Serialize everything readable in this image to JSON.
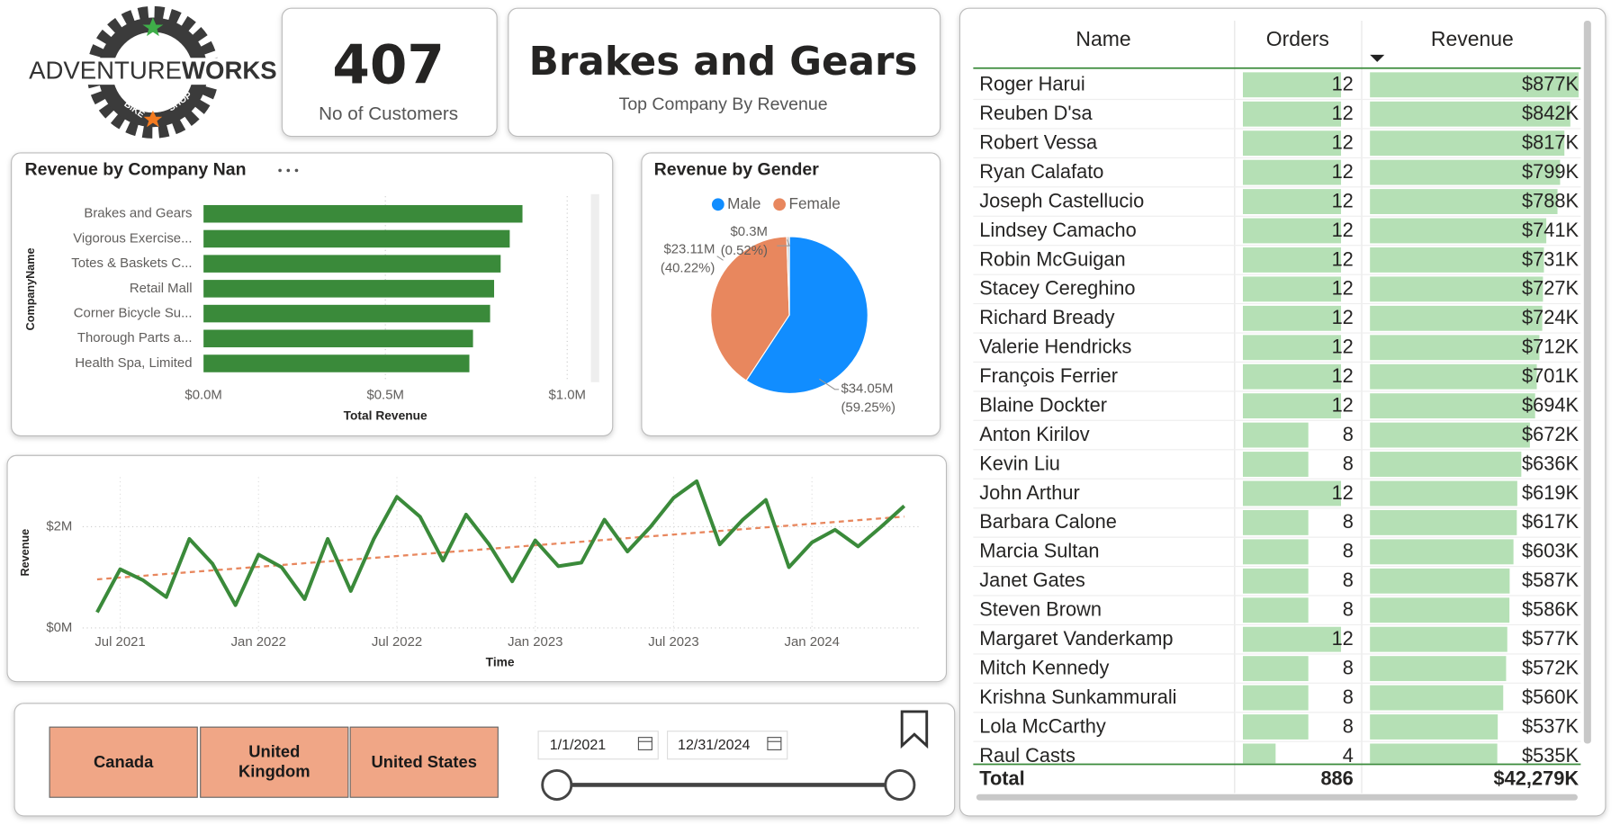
{
  "logo": {
    "name_light": "ADVENTURE",
    "name_bold": "WORKS",
    "badge": [
      "BIKE",
      "SHOP"
    ]
  },
  "cards": [
    {
      "value": 407,
      "label": "No of Customers"
    },
    {
      "value": "Brakes and Gears",
      "label": "Top Company By Revenue"
    }
  ],
  "chart_data": [
    {
      "type": "bar",
      "orientation": "horizontal",
      "title": "Revenue by Company Nan",
      "x_label": "Total Revenue",
      "y_label": "CompanyName",
      "color": "#3A8A3A",
      "grid": true,
      "categories": [
        "Brakes and Gears",
        "Vigorous Exercise...",
        "Totes & Baskets C...",
        "Retail Mall",
        "Corner Bicycle Su...",
        "Thorough Parts a...",
        "Health Spa, Limited"
      ],
      "values": [
        877000,
        842000,
        817000,
        799000,
        788000,
        741000,
        731000
      ],
      "xlim": [
        0,
        1070000
      ],
      "xticks": [
        {
          "value": 0,
          "label": "$0.0M"
        },
        {
          "value": 500000,
          "label": "$0.5M"
        },
        {
          "value": 1000000,
          "label": "$1.0M"
        }
      ]
    },
    {
      "type": "pie",
      "title": "Revenue by Gender",
      "categories": [
        "Male",
        "Female",
        null
      ],
      "colors": [
        "#118DFF",
        "#E8875E",
        "#C8C8C8"
      ],
      "values": [
        34050000,
        23110000,
        300000
      ],
      "value_labels": [
        "$34.05M",
        "$23.11M",
        "$0.3M"
      ],
      "percent_labels": [
        "(59.25%)",
        "(40.22%)",
        "(0.52%)"
      ],
      "legend": "top"
    },
    {
      "type": "line",
      "x_label": "Time",
      "y_label": "Revenue",
      "color": "#3A8A3A",
      "grid": true,
      "x": [
        "2021-06",
        "2021-07",
        "2021-08",
        "2021-09",
        "2021-10",
        "2021-11",
        "2021-12",
        "2022-01",
        "2022-02",
        "2022-03",
        "2022-04",
        "2022-05",
        "2022-06",
        "2022-07",
        "2022-08",
        "2022-09",
        "2022-10",
        "2022-11",
        "2022-12",
        "2023-01",
        "2023-02",
        "2023-03",
        "2023-04",
        "2023-05",
        "2023-06",
        "2023-07",
        "2023-08",
        "2023-09",
        "2023-10",
        "2023-11",
        "2023-12",
        "2024-01",
        "2024-02",
        "2024-03",
        "2024-04",
        "2024-05"
      ],
      "values": [
        310000,
        1160000,
        940000,
        610000,
        1760000,
        1270000,
        450000,
        1450000,
        1200000,
        570000,
        1760000,
        730000,
        1760000,
        2590000,
        2200000,
        1330000,
        2240000,
        1650000,
        920000,
        1730000,
        1220000,
        1290000,
        2140000,
        1510000,
        2000000,
        2570000,
        2900000,
        1650000,
        2140000,
        2530000,
        1200000,
        1690000,
        1940000,
        1610000,
        2000000,
        2410000
      ],
      "trend": {
        "color": "#E8875E",
        "values": [
          960000,
          2200000
        ]
      },
      "ylim": [
        -100000,
        3000000
      ],
      "yticks": [
        {
          "value": 0,
          "label": "$0M"
        },
        {
          "value": 2000000,
          "label": "$2M"
        }
      ],
      "xticks": [
        {
          "value": "2021-07",
          "label": "Jul 2021"
        },
        {
          "value": "2022-01",
          "label": "Jan 2022"
        },
        {
          "value": "2022-07",
          "label": "Jul 2022"
        },
        {
          "value": "2023-01",
          "label": "Jan 2023"
        },
        {
          "value": "2023-07",
          "label": "Jul 2023"
        },
        {
          "value": "2024-01",
          "label": "Jan 2024"
        }
      ]
    }
  ],
  "slicer": {
    "countries": [
      "Canada",
      "United Kingdom",
      "United States"
    ],
    "date_from": "1/1/2021",
    "date_to": "12/31/2024"
  },
  "table": {
    "columns": [
      "Name",
      "Orders",
      "Revenue"
    ],
    "rows": [
      {
        "name": "Roger Harui",
        "orders": 12,
        "revenue": 877000,
        "revenue_label": "$877K"
      },
      {
        "name": "Reuben D'sa",
        "orders": 12,
        "revenue": 842000,
        "revenue_label": "$842K"
      },
      {
        "name": "Robert Vessa",
        "orders": 12,
        "revenue": 817000,
        "revenue_label": "$817K"
      },
      {
        "name": "Ryan Calafato",
        "orders": 12,
        "revenue": 799000,
        "revenue_label": "$799K"
      },
      {
        "name": "Joseph Castellucio",
        "orders": 12,
        "revenue": 788000,
        "revenue_label": "$788K"
      },
      {
        "name": "Lindsey Camacho",
        "orders": 12,
        "revenue": 741000,
        "revenue_label": "$741K"
      },
      {
        "name": "Robin McGuigan",
        "orders": 12,
        "revenue": 731000,
        "revenue_label": "$731K"
      },
      {
        "name": "Stacey Cereghino",
        "orders": 12,
        "revenue": 727000,
        "revenue_label": "$727K"
      },
      {
        "name": "Richard Bready",
        "orders": 12,
        "revenue": 724000,
        "revenue_label": "$724K"
      },
      {
        "name": "Valerie Hendricks",
        "orders": 12,
        "revenue": 712000,
        "revenue_label": "$712K"
      },
      {
        "name": "François Ferrier",
        "orders": 12,
        "revenue": 701000,
        "revenue_label": "$701K"
      },
      {
        "name": "Blaine Dockter",
        "orders": 12,
        "revenue": 694000,
        "revenue_label": "$694K"
      },
      {
        "name": "Anton Kirilov",
        "orders": 8,
        "revenue": 672000,
        "revenue_label": "$672K"
      },
      {
        "name": "Kevin Liu",
        "orders": 8,
        "revenue": 636000,
        "revenue_label": "$636K"
      },
      {
        "name": "John Arthur",
        "orders": 12,
        "revenue": 619000,
        "revenue_label": "$619K"
      },
      {
        "name": "Barbara Calone",
        "orders": 8,
        "revenue": 617000,
        "revenue_label": "$617K"
      },
      {
        "name": "Marcia Sultan",
        "orders": 8,
        "revenue": 603000,
        "revenue_label": "$603K"
      },
      {
        "name": "Janet Gates",
        "orders": 8,
        "revenue": 587000,
        "revenue_label": "$587K"
      },
      {
        "name": "Steven Brown",
        "orders": 8,
        "revenue": 586000,
        "revenue_label": "$586K"
      },
      {
        "name": "Margaret Vanderkamp",
        "orders": 12,
        "revenue": 577000,
        "revenue_label": "$577K"
      },
      {
        "name": "Mitch Kennedy",
        "orders": 8,
        "revenue": 572000,
        "revenue_label": "$572K"
      },
      {
        "name": "Krishna Sunkammurali",
        "orders": 8,
        "revenue": 560000,
        "revenue_label": "$560K"
      },
      {
        "name": "Lola McCarthy",
        "orders": 8,
        "revenue": 537000,
        "revenue_label": "$537K"
      },
      {
        "name": "Raul Casts",
        "orders": 4,
        "revenue": 535000,
        "revenue_label": "$535K"
      }
    ],
    "total": {
      "label": "Total",
      "orders": 886,
      "revenue": 42279000,
      "revenue_label": "$42,279K"
    }
  }
}
